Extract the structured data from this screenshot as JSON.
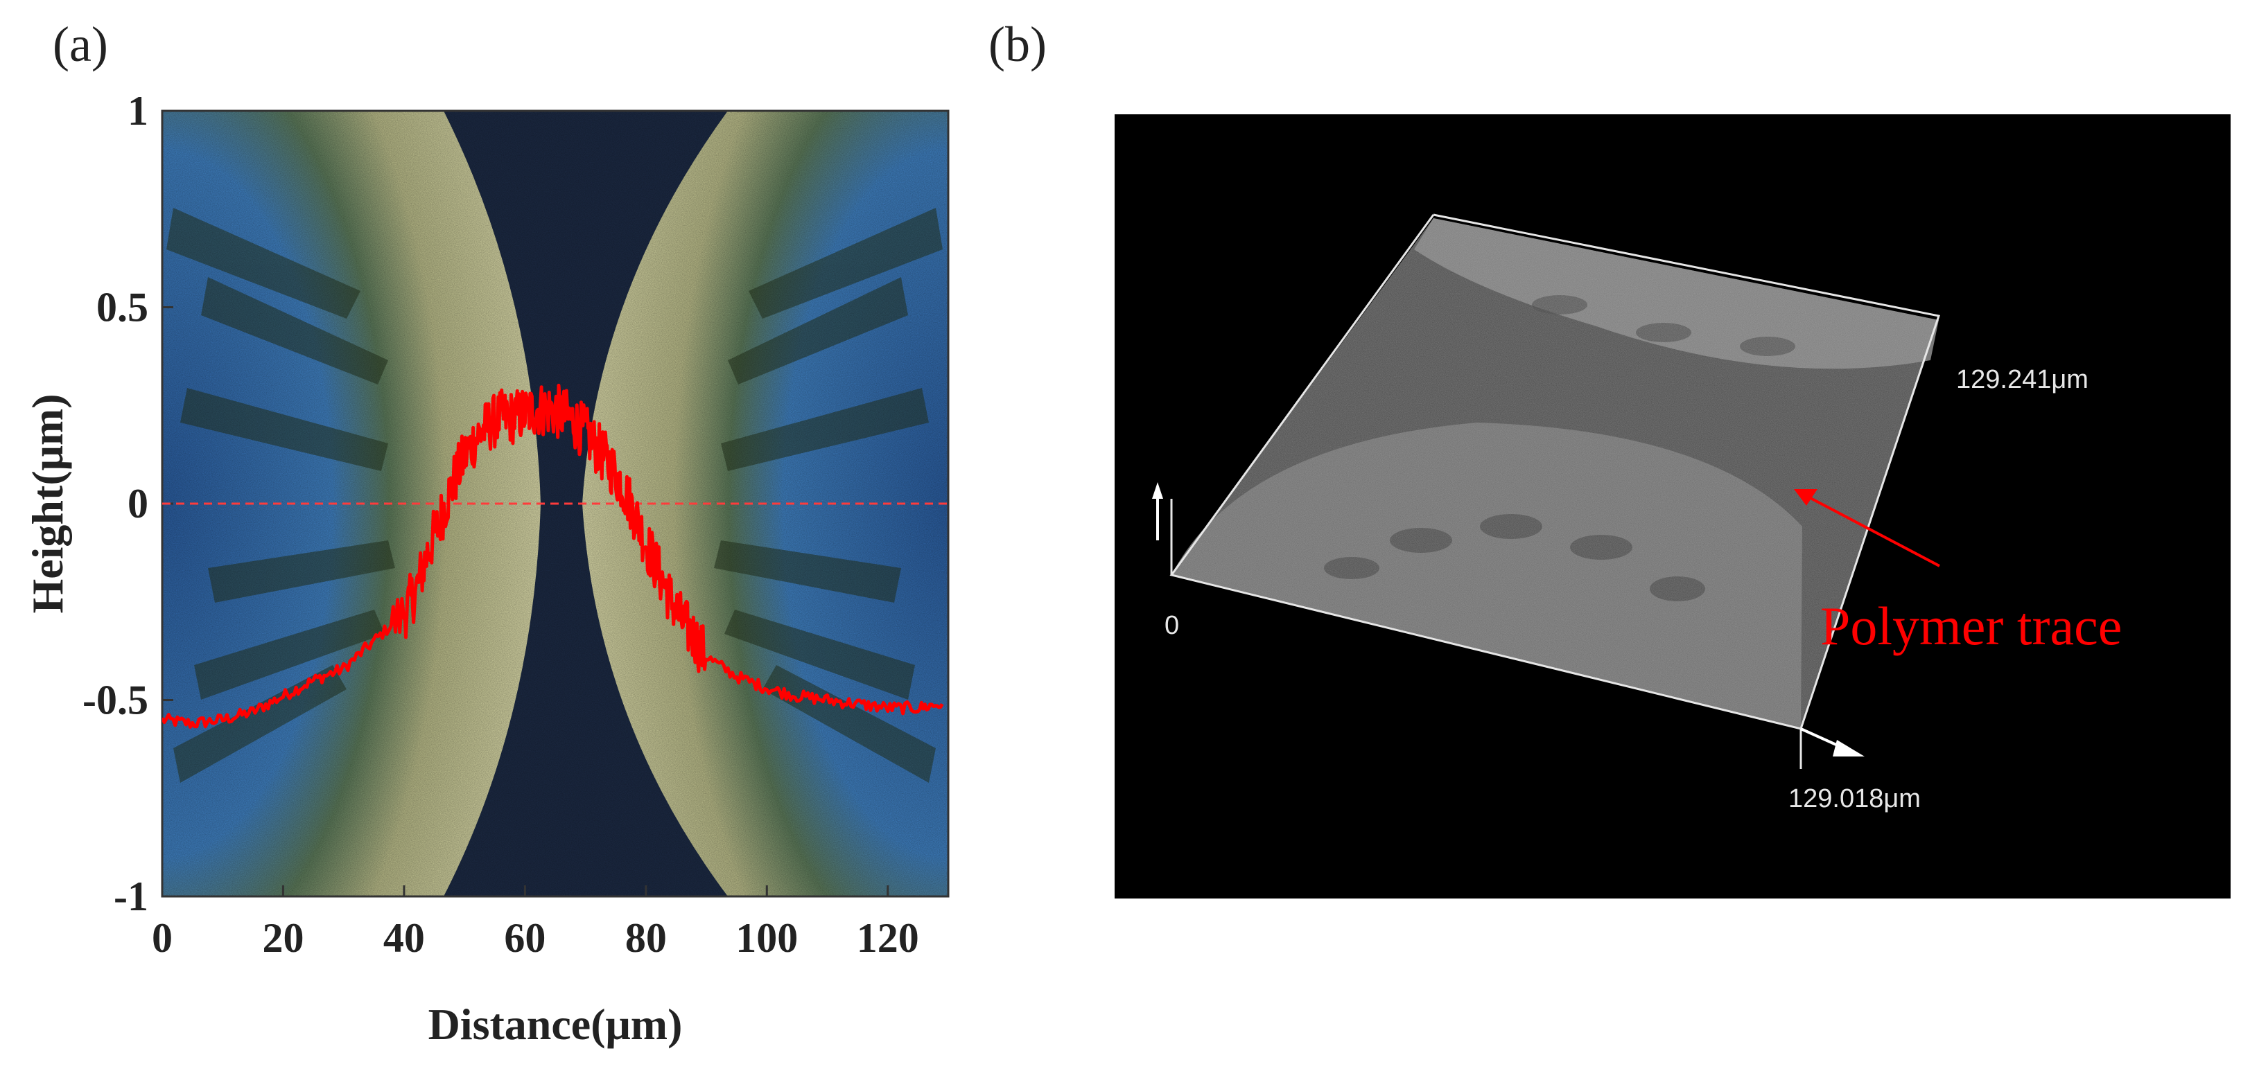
{
  "panel_a": {
    "label": "(a)",
    "chart_data": {
      "type": "line",
      "title": "",
      "xlabel": "Distance(μm)",
      "ylabel": "Height(μm)",
      "xlim": [
        0,
        130
      ],
      "ylim": [
        -1,
        1
      ],
      "xticks": [
        0,
        20,
        40,
        60,
        80,
        100,
        120
      ],
      "yticks": [
        -1,
        -0.5,
        0,
        0.5,
        1
      ],
      "xtick_labels": [
        "0",
        "20",
        "40",
        "60",
        "80",
        "100",
        "120"
      ],
      "ytick_labels": [
        "-1",
        "-0.5",
        "0",
        "0.5",
        "1"
      ],
      "reference_line": {
        "y": 0,
        "style": "dashed",
        "color": "#ff3b3b"
      },
      "background": "optical micrograph of two facing curved polymer-ring regions",
      "grid": false,
      "legend": "none",
      "series": [
        {
          "color": "#ff0000",
          "noisy": true,
          "x": [
            0,
            5,
            10,
            15,
            20,
            25,
            30,
            35,
            40,
            42,
            44,
            46,
            48,
            50,
            52,
            54,
            56,
            58,
            60,
            62,
            64,
            66,
            68,
            70,
            72,
            74,
            76,
            78,
            80,
            82,
            84,
            86,
            88,
            90,
            95,
            100,
            105,
            110,
            115,
            120,
            125,
            129
          ],
          "y": [
            -0.55,
            -0.56,
            -0.55,
            -0.53,
            -0.49,
            -0.45,
            -0.42,
            -0.35,
            -0.28,
            -0.22,
            -0.12,
            -0.04,
            0.05,
            0.12,
            0.17,
            0.2,
            0.22,
            0.22,
            0.23,
            0.24,
            0.24,
            0.23,
            0.21,
            0.18,
            0.14,
            0.1,
            0.05,
            -0.02,
            -0.1,
            -0.17,
            -0.24,
            -0.3,
            -0.34,
            -0.39,
            -0.44,
            -0.47,
            -0.49,
            -0.5,
            -0.51,
            -0.52,
            -0.52,
            -0.51
          ]
        }
      ]
    }
  },
  "panel_b": {
    "label": "(b)",
    "axis_labels": {
      "y_extent": "129.241μm",
      "x_extent": "129.018μm",
      "origin": "0"
    },
    "annotation": "Polymer trace",
    "annotation_color": "#ff0000",
    "background_color": "#000000",
    "image": "3D surface rendering of the polymer-ring sample"
  }
}
